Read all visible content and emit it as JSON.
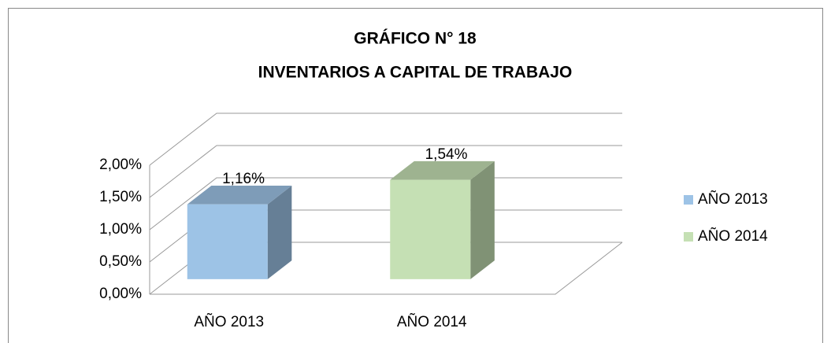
{
  "chart_data": {
    "type": "bar3d",
    "title": [
      "GRÁFICO N° 18",
      "INVENTARIOS A CAPITAL DE TRABAJO"
    ],
    "categories": [
      "AÑO 2013",
      "AÑO 2014"
    ],
    "values": [
      1.16,
      1.54
    ],
    "value_labels": [
      "1,16%",
      "1,54%"
    ],
    "colors": [
      "#9dc3e6",
      "#c5e0b4"
    ],
    "ylim": [
      0,
      2
    ],
    "yticks": [
      {
        "value": 0,
        "label": "0,00%"
      },
      {
        "value": 0.5,
        "label": "0,50%"
      },
      {
        "value": 1,
        "label": "1,00%"
      },
      {
        "value": 1.5,
        "label": "1,50%"
      },
      {
        "value": 2,
        "label": "2,00%"
      }
    ],
    "grid": true,
    "legend": "right"
  }
}
